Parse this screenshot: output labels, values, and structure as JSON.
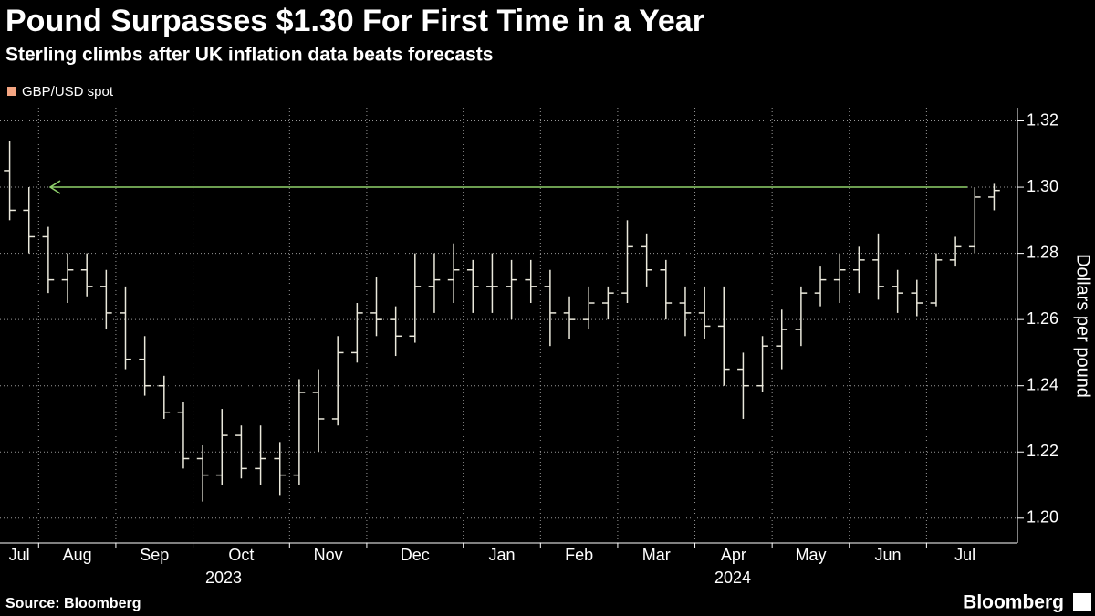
{
  "chart_data": {
    "type": "ohlc",
    "title": "Pound Surpasses $1.30 For First Time in a Year",
    "subtitle": "Sterling climbs after UK inflation data beats forecasts",
    "y_label": "Dollars per pound",
    "source": "Source: Bloomberg",
    "logo": "Bloomberg",
    "year_labels": [
      "2023",
      "2024"
    ],
    "categories": [
      "Jul",
      null,
      "Aug",
      null,
      null,
      null,
      "Sep",
      null,
      null,
      null,
      "Oct",
      null,
      null,
      null,
      null,
      "Nov",
      null,
      null,
      null,
      "Dec",
      null,
      null,
      null,
      null,
      "Jan",
      null,
      null,
      null,
      "Feb",
      null,
      null,
      null,
      "Mar",
      null,
      null,
      null,
      "Apr",
      null,
      null,
      null,
      "May",
      null,
      null,
      null,
      "Jun",
      null,
      null,
      null,
      "Jul",
      null,
      null,
      null
    ],
    "series": [
      {
        "name": "GBP/USD spot",
        "color": "#f4a582",
        "bar_color": "#ebe9dc",
        "open": [
          1.305,
          1.293,
          1.285,
          1.272,
          1.275,
          1.27,
          1.262,
          1.248,
          1.24,
          1.232,
          1.218,
          1.213,
          1.225,
          1.215,
          1.218,
          1.213,
          1.238,
          1.23,
          1.25,
          1.262,
          1.26,
          1.255,
          1.27,
          1.272,
          1.275,
          1.27,
          1.27,
          1.272,
          1.27,
          1.262,
          1.26,
          1.265,
          1.268,
          1.282,
          1.275,
          1.265,
          1.262,
          1.258,
          1.245,
          1.24,
          1.252,
          1.257,
          1.268,
          1.272,
          1.275,
          1.278,
          1.27,
          1.268,
          1.265,
          1.278,
          1.282,
          1.297
        ],
        "high": [
          1.314,
          1.3,
          1.288,
          1.28,
          1.28,
          1.275,
          1.27,
          1.255,
          1.243,
          1.235,
          1.222,
          1.233,
          1.228,
          1.228,
          1.223,
          1.242,
          1.245,
          1.255,
          1.265,
          1.273,
          1.264,
          1.28,
          1.28,
          1.283,
          1.278,
          1.28,
          1.278,
          1.278,
          1.275,
          1.267,
          1.27,
          1.27,
          1.29,
          1.286,
          1.278,
          1.27,
          1.27,
          1.27,
          1.25,
          1.255,
          1.263,
          1.27,
          1.276,
          1.28,
          1.282,
          1.286,
          1.275,
          1.272,
          1.28,
          1.285,
          1.3,
          1.301
        ],
        "low": [
          1.29,
          1.28,
          1.268,
          1.265,
          1.267,
          1.257,
          1.245,
          1.237,
          1.23,
          1.215,
          1.205,
          1.21,
          1.212,
          1.21,
          1.207,
          1.21,
          1.22,
          1.228,
          1.247,
          1.255,
          1.249,
          1.253,
          1.262,
          1.265,
          1.262,
          1.262,
          1.26,
          1.265,
          1.252,
          1.254,
          1.257,
          1.26,
          1.265,
          1.27,
          1.26,
          1.255,
          1.254,
          1.24,
          1.23,
          1.238,
          1.245,
          1.252,
          1.264,
          1.265,
          1.268,
          1.266,
          1.262,
          1.261,
          1.264,
          1.276,
          1.28,
          1.293
        ],
        "close": [
          1.293,
          1.285,
          1.272,
          1.275,
          1.27,
          1.262,
          1.248,
          1.24,
          1.232,
          1.218,
          1.213,
          1.225,
          1.215,
          1.218,
          1.213,
          1.238,
          1.23,
          1.25,
          1.262,
          1.26,
          1.255,
          1.27,
          1.272,
          1.275,
          1.27,
          1.27,
          1.272,
          1.27,
          1.262,
          1.26,
          1.265,
          1.268,
          1.282,
          1.275,
          1.265,
          1.262,
          1.258,
          1.245,
          1.24,
          1.252,
          1.257,
          1.268,
          1.272,
          1.275,
          1.278,
          1.27,
          1.268,
          1.265,
          1.278,
          1.282,
          1.297,
          1.299
        ]
      }
    ],
    "reference_line": {
      "value": 1.3,
      "color": "#8fd16b"
    },
    "ylim": [
      1.1925,
      1.324
    ],
    "yticks": [
      {
        "value": 1.2,
        "label": "1.20"
      },
      1.22,
      1.24,
      1.26,
      1.28,
      {
        "value": 1.3,
        "label": "1.30"
      },
      1.32
    ],
    "grid": true
  }
}
